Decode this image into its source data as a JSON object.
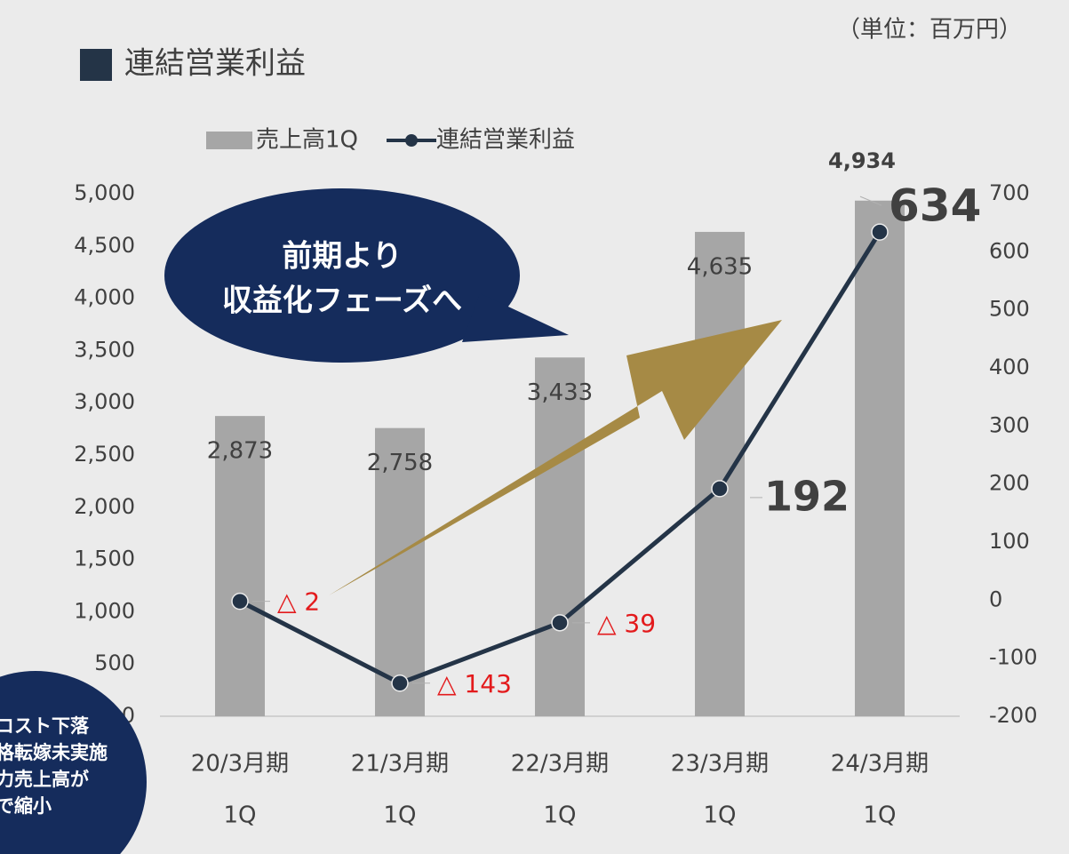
{
  "chart_data": {
    "type": "combo",
    "title": "連結営業利益",
    "unit": "（単位：百万円）",
    "categories": [
      [
        "20/3月期",
        "1Q"
      ],
      [
        "21/3月期",
        "1Q"
      ],
      [
        "22/3月期",
        "1Q"
      ],
      [
        "23/3月期",
        "1Q"
      ],
      [
        "24/3月期",
        "1Q"
      ]
    ],
    "series": [
      {
        "name": "売上高1Q",
        "type": "bar",
        "color": "#a6a6a6",
        "values": [
          2873,
          2758,
          3433,
          4635,
          4934
        ],
        "value_labels": [
          "2,873",
          "2,758",
          "3,433",
          "4,635",
          "4,934"
        ]
      },
      {
        "name": "連結営業利益",
        "type": "line",
        "axis": "y2",
        "color": "#243447",
        "values": [
          -2,
          -143,
          -39,
          192,
          634
        ],
        "value_labels": [
          "△ 2",
          "△ 143",
          "△ 39",
          "192",
          "634"
        ]
      }
    ],
    "ylim": [
      0,
      5000
    ],
    "yticks": [
      0,
      500,
      {
        "value": 1000,
        "label": "1,000"
      },
      {
        "value": 1500,
        "label": "1,500"
      },
      {
        "value": 2000,
        "label": "2,000"
      },
      {
        "value": 2500,
        "label": "2,500"
      },
      {
        "value": 3000,
        "label": "3,000"
      },
      {
        "value": 3500,
        "label": "3,500"
      },
      {
        "value": 4000,
        "label": "4,000"
      },
      {
        "value": 4500,
        "label": "4,500"
      },
      {
        "value": 5000,
        "label": "5,000"
      }
    ],
    "y2lim": [
      -200,
      700
    ],
    "y2ticks": [
      -200,
      -100,
      0,
      100,
      200,
      300,
      400,
      500,
      600,
      700
    ],
    "callout": [
      "前期より",
      "収益化フェーズへ"
    ],
    "note": [
      "コスト下落",
      "格転嫁未実施",
      "力売上高が",
      "で縮小"
    ]
  }
}
